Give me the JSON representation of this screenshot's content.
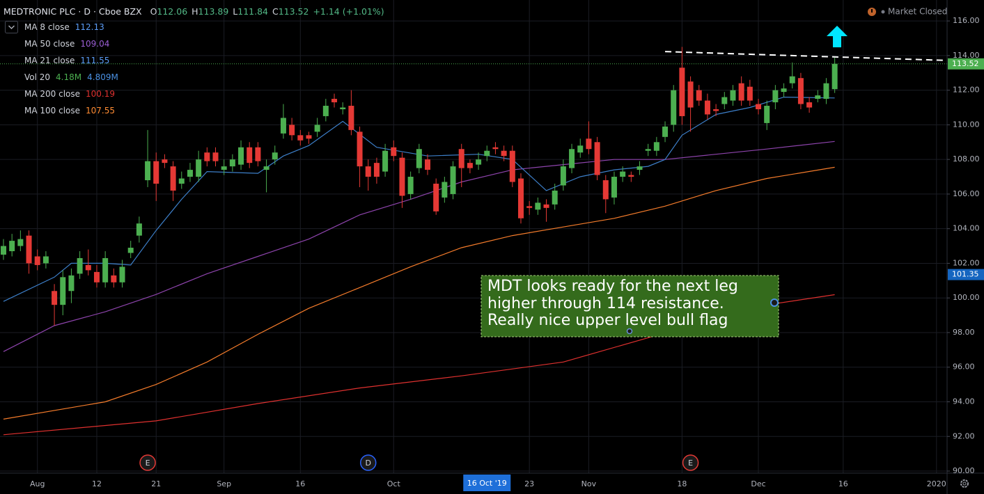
{
  "chart_data": {
    "type": "candlestick",
    "header": {
      "title": "MEDTRONIC PLC · D · Cboe BZX",
      "ohlc": [
        {
          "label": "O",
          "value": 112.06
        },
        {
          "label": "H",
          "value": 113.89
        },
        {
          "label": "L",
          "value": 111.84
        },
        {
          "label": "C",
          "value": 113.52
        }
      ],
      "change": "+1.14 (+1.01%)",
      "status": "Market Closed"
    },
    "categories": [
      null,
      null,
      null,
      null,
      "Aug",
      null,
      null,
      null,
      null,
      null,
      null,
      "12",
      null,
      null,
      null,
      null,
      null,
      null,
      "21",
      null,
      null,
      null,
      null,
      null,
      null,
      null,
      "Sep",
      null,
      null,
      null,
      null,
      null,
      null,
      null,
      null,
      "16",
      null,
      null,
      null,
      null,
      null,
      null,
      null,
      null,
      null,
      null,
      "Oct",
      null,
      null,
      null,
      null,
      null,
      null,
      null,
      null,
      null,
      null,
      null,
      null,
      null,
      null,
      null,
      "23",
      null,
      null,
      null,
      null,
      null,
      null,
      "Nov",
      null,
      null,
      null,
      null,
      null,
      null,
      null,
      null,
      null,
      null,
      "18",
      null,
      null,
      null,
      null,
      null,
      null,
      null,
      null,
      "Dec",
      null,
      null,
      null,
      null,
      null,
      null,
      null,
      null,
      null,
      "16",
      null,
      null,
      null,
      null,
      null,
      null,
      null,
      null,
      null,
      null,
      "2020"
    ],
    "open": [
      102.5,
      102.7,
      103.0,
      103.6,
      102.4,
      102.0,
      100.4,
      99.6,
      100.4,
      101.4,
      101.9,
      101.5,
      100.9,
      101.3,
      100.9,
      102.6,
      103.6,
      106.8,
      107.9,
      108.0,
      107.6,
      106.6,
      107.0,
      107.0,
      108.4,
      108.4,
      107.4,
      107.6,
      107.7,
      108.7,
      108.7,
      107.4,
      108.0,
      109.5,
      110.0,
      109.4,
      109.4,
      109.6,
      110.5,
      111.5,
      110.9,
      111.1,
      109.6,
      107.6,
      107.8,
      107.3,
      108.7,
      108.1,
      106.0,
      107.5,
      108.0,
      106.6,
      105.8,
      106.0,
      108.6,
      107.8,
      107.7,
      108.2,
      108.7,
      108.5,
      108.5,
      106.9,
      105.3,
      105.1,
      105.4,
      105.4,
      106.5,
      107.5,
      108.4,
      109.2,
      109.0,
      106.8,
      105.8,
      107.0,
      107.1,
      107.4,
      108.5,
      108.5,
      109.3,
      110.0,
      113.3,
      112.5,
      112.0,
      111.4,
      110.9,
      111.2,
      111.4,
      112.4,
      112.2,
      111.2,
      110.1,
      111.3,
      111.9,
      112.4,
      112.7,
      111.3,
      111.5,
      111.5,
      112.06,
      null,
      null,
      null,
      null,
      null,
      null,
      null,
      null,
      null,
      null,
      null,
      null
    ],
    "high": [
      103.4,
      103.7,
      103.9,
      103.9,
      102.8,
      102.7,
      100.8,
      101.6,
      101.7,
      102.7,
      102.8,
      101.9,
      102.7,
      101.7,
      102.2,
      103.3,
      104.7,
      109.7,
      108.4,
      108.3,
      107.9,
      107.3,
      107.8,
      108.5,
      108.7,
      108.7,
      108.0,
      108.3,
      109.1,
      109.0,
      109.0,
      108.0,
      108.8,
      111.2,
      110.4,
      109.7,
      109.6,
      110.4,
      111.5,
      111.8,
      111.3,
      112.0,
      109.9,
      108.0,
      108.1,
      108.9,
      109.1,
      108.4,
      107.3,
      108.9,
      108.3,
      106.9,
      107.0,
      107.9,
      108.9,
      108.0,
      108.4,
      108.8,
      109.0,
      108.8,
      108.8,
      107.2,
      105.6,
      105.8,
      105.7,
      106.6,
      108.0,
      108.9,
      109.2,
      110.2,
      109.3,
      107.1,
      107.3,
      107.6,
      107.3,
      107.9,
      108.9,
      109.3,
      110.2,
      112.3,
      114.5,
      112.8,
      112.3,
      111.8,
      111.2,
      111.9,
      112.3,
      112.8,
      112.6,
      111.5,
      111.4,
      112.3,
      112.4,
      113.6,
      113.0,
      111.6,
      112.0,
      112.7,
      113.89,
      null,
      null,
      null,
      null,
      null,
      null,
      null,
      null,
      null,
      null,
      null,
      null
    ],
    "low": [
      102.2,
      102.4,
      102.7,
      101.4,
      101.6,
      101.7,
      98.4,
      99.0,
      99.7,
      101.1,
      101.3,
      100.6,
      100.6,
      100.6,
      100.6,
      102.3,
      103.2,
      106.4,
      105.6,
      107.5,
      105.6,
      106.3,
      106.7,
      106.7,
      107.6,
      107.6,
      107.1,
      107.3,
      107.4,
      107.5,
      107.6,
      106.1,
      107.7,
      109.2,
      109.1,
      108.8,
      108.9,
      109.3,
      110.2,
      111.0,
      110.6,
      109.4,
      106.4,
      106.2,
      106.6,
      107.0,
      107.9,
      105.2,
      105.7,
      107.2,
      107.1,
      104.8,
      105.5,
      105.7,
      106.4,
      107.2,
      107.4,
      107.9,
      108.3,
      107.9,
      106.4,
      104.3,
      104.8,
      104.8,
      104.4,
      105.1,
      106.2,
      107.2,
      108.1,
      108.3,
      106.8,
      104.9,
      105.4,
      106.7,
      106.7,
      107.1,
      108.2,
      108.2,
      109.0,
      109.6,
      110.0,
      109.6,
      111.1,
      110.3,
      110.5,
      110.9,
      111.1,
      111.1,
      111.1,
      110.6,
      109.7,
      110.9,
      111.6,
      112.1,
      110.9,
      110.7,
      111.3,
      111.2,
      111.84,
      null,
      null,
      null,
      null,
      null,
      null,
      null,
      null,
      null,
      null,
      null,
      null
    ],
    "close": [
      103.0,
      103.3,
      103.4,
      102.0,
      101.9,
      102.4,
      99.6,
      101.2,
      101.3,
      102.3,
      101.6,
      100.9,
      102.3,
      100.9,
      101.8,
      102.9,
      104.3,
      107.9,
      106.6,
      107.8,
      106.2,
      106.9,
      107.4,
      108.0,
      107.9,
      107.9,
      107.6,
      108.0,
      108.7,
      107.8,
      107.9,
      107.6,
      108.4,
      110.4,
      109.4,
      109.1,
      109.2,
      110.0,
      111.1,
      111.3,
      111.0,
      109.7,
      107.6,
      107.0,
      107.0,
      108.5,
      108.2,
      105.9,
      107.0,
      108.6,
      107.4,
      105.0,
      106.7,
      107.6,
      107.5,
      107.5,
      108.0,
      108.5,
      108.6,
      108.2,
      106.7,
      104.6,
      105.2,
      105.5,
      105.2,
      106.2,
      107.6,
      108.6,
      108.8,
      108.6,
      107.1,
      105.7,
      107.0,
      107.3,
      107.0,
      107.6,
      108.6,
      109.0,
      109.9,
      112.0,
      110.5,
      111.0,
      111.4,
      110.6,
      110.8,
      111.6,
      112.0,
      111.4,
      111.4,
      110.9,
      111.1,
      112.0,
      112.1,
      112.8,
      111.2,
      111.0,
      111.7,
      112.4,
      113.52,
      null,
      null,
      null,
      null,
      null,
      null,
      null,
      null,
      null,
      null,
      null,
      null
    ],
    "up_color": "#4caf50",
    "down_color": "#e53935",
    "series": [
      {
        "name": "MA 8 close",
        "color": "#5b9cf6",
        "last": 112.13
      },
      {
        "name": "MA 50 close",
        "color": "#9c5fd6",
        "last": 109.04,
        "line_color": "#8e44ad",
        "x": [
          0,
          6,
          12,
          18,
          24,
          30,
          36,
          42,
          48,
          54,
          60,
          66,
          72,
          78,
          84,
          90,
          98
        ],
        "values": [
          96.9,
          98.4,
          99.2,
          100.2,
          101.4,
          102.4,
          103.4,
          104.8,
          105.7,
          106.7,
          107.4,
          107.7,
          108.0,
          108.0,
          108.3,
          108.6,
          109.04
        ]
      },
      {
        "name": "MA 21 close",
        "color": "#5b9cf6",
        "last": 111.55,
        "line_color": "#3d7fc9",
        "x": [
          0,
          6,
          8,
          12,
          15,
          18,
          21,
          24,
          30,
          33,
          36,
          40,
          44,
          50,
          56,
          60,
          64,
          68,
          72,
          76,
          78,
          80,
          84,
          88,
          92,
          98
        ],
        "values": [
          99.8,
          101.2,
          102.0,
          102.0,
          101.9,
          103.9,
          105.7,
          107.3,
          107.2,
          108.2,
          108.8,
          110.2,
          108.7,
          108.2,
          108.3,
          108.0,
          106.2,
          107.0,
          107.4,
          107.6,
          108.0,
          109.4,
          110.6,
          111.0,
          111.6,
          111.55
        ]
      },
      {
        "name": "Vol 20",
        "labels": [
          "4.18M",
          "4.809M"
        ],
        "label_colors": [
          "#4caf50",
          "#4a90e2"
        ]
      },
      {
        "name": "MA 200 close",
        "color": "#e0312f",
        "last": 100.19,
        "line_color": "#e0312f",
        "x": [
          0,
          18,
          30,
          42,
          54,
          66,
          76,
          84,
          90,
          98
        ],
        "values": [
          92.1,
          92.9,
          93.9,
          94.8,
          95.5,
          96.3,
          97.7,
          98.9,
          99.6,
          100.19
        ]
      },
      {
        "name": "MA 100 close",
        "color": "#ff8c33",
        "last": 107.55,
        "line_color": "#f57c2b",
        "x": [
          0,
          12,
          18,
          24,
          30,
          36,
          42,
          48,
          54,
          60,
          66,
          72,
          78,
          84,
          90,
          98
        ],
        "values": [
          93.0,
          94.0,
          95.0,
          96.3,
          97.9,
          99.4,
          100.6,
          101.8,
          102.9,
          103.6,
          104.1,
          104.6,
          105.3,
          106.2,
          106.9,
          107.55
        ]
      }
    ],
    "ylim": [
      89.88,
      117.21
    ],
    "yticks": [
      {
        "value": 90,
        "label": "90.00"
      },
      {
        "value": 92,
        "label": "92.00"
      },
      {
        "value": 94,
        "label": "94.00"
      },
      {
        "value": 96,
        "label": "96.00"
      },
      {
        "value": 98,
        "label": "98.00"
      },
      {
        "value": 100,
        "label": "100.00"
      },
      {
        "value": 102,
        "label": "102.00"
      },
      {
        "value": 104,
        "label": "104.00"
      },
      {
        "value": 106,
        "label": "106.00"
      },
      {
        "value": 108,
        "label": "108.00"
      },
      {
        "value": 110,
        "label": "110.00"
      },
      {
        "value": 112,
        "label": "112.00"
      },
      {
        "value": 114,
        "label": "114.00"
      },
      {
        "value": 116,
        "label": "116.00"
      }
    ],
    "grid": true,
    "last_price": 113.52,
    "crosshair": {
      "x": 57,
      "label": "16 Oct '19",
      "price": 101.35
    },
    "resistance_line": {
      "x": [
        78,
        111.2
      ],
      "values": [
        114.23,
        113.72
      ]
    },
    "events": [
      {
        "x": 17,
        "label": "E"
      },
      {
        "x": 43,
        "label": "D"
      },
      {
        "x": 81,
        "label": "E"
      }
    ],
    "annotation": {
      "lines": [
        "MDT looks ready for the next leg",
        "higher through 114 resistance.",
        "Really nice upper level bull flag"
      ]
    }
  }
}
